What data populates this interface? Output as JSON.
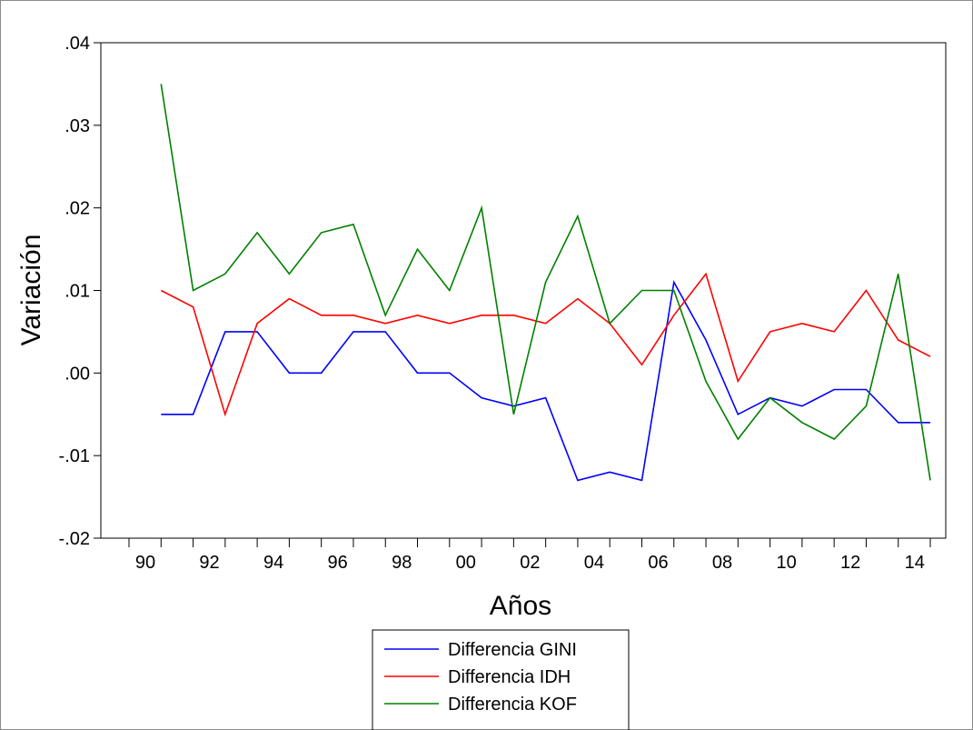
{
  "chart_data": {
    "type": "line",
    "title": "",
    "xlabel": "Años",
    "ylabel": "Variación",
    "x": [
      1991,
      1992,
      1993,
      1994,
      1995,
      1996,
      1997,
      1998,
      1999,
      2000,
      2001,
      2002,
      2003,
      2004,
      2005,
      2006,
      2007,
      2008,
      2009,
      2010,
      2011,
      2012,
      2013,
      2014,
      2015
    ],
    "xlim": [
      1990,
      2015
    ],
    "ylim": [
      -0.02,
      0.04
    ],
    "x_tick_values": [
      1990,
      1992,
      1994,
      1996,
      1998,
      2000,
      2002,
      2004,
      2006,
      2008,
      2010,
      2012,
      2014
    ],
    "x_tick_labels": [
      "90",
      "92",
      "94",
      "96",
      "98",
      "00",
      "02",
      "04",
      "06",
      "08",
      "10",
      "12",
      "14"
    ],
    "y_tick_values": [
      -0.02,
      -0.01,
      0.0,
      0.01,
      0.02,
      0.03,
      0.04
    ],
    "y_tick_labels": [
      "-.02",
      "-.01",
      ".00",
      ".01",
      ".02",
      ".03",
      ".04"
    ],
    "grid": false,
    "legend_position": "bottom-center",
    "series": [
      {
        "name": "Differencia GINI",
        "color": "#0000ff",
        "values": [
          -0.005,
          -0.005,
          0.005,
          0.005,
          0.0,
          0.0,
          0.005,
          0.005,
          0.0,
          0.0,
          -0.003,
          -0.004,
          -0.003,
          -0.013,
          -0.012,
          -0.013,
          0.011,
          0.004,
          -0.005,
          -0.003,
          -0.004,
          -0.002,
          -0.002,
          -0.006,
          -0.006
        ]
      },
      {
        "name": "Differencia IDH",
        "color": "#ff0000",
        "values": [
          0.01,
          0.008,
          -0.005,
          0.006,
          0.009,
          0.007,
          0.007,
          0.006,
          0.007,
          0.006,
          0.007,
          0.007,
          0.006,
          0.009,
          0.006,
          0.001,
          0.007,
          0.012,
          -0.001,
          0.005,
          0.006,
          0.005,
          0.01,
          0.004,
          0.002
        ]
      },
      {
        "name": "Differencia KOF",
        "color": "#008000",
        "values": [
          0.035,
          0.01,
          0.012,
          0.017,
          0.012,
          0.017,
          0.018,
          0.007,
          0.015,
          0.01,
          0.02,
          -0.005,
          0.011,
          0.019,
          0.006,
          0.01,
          0.01,
          -0.001,
          -0.008,
          -0.003,
          -0.006,
          -0.008,
          -0.004,
          0.012,
          -0.013
        ]
      }
    ]
  }
}
